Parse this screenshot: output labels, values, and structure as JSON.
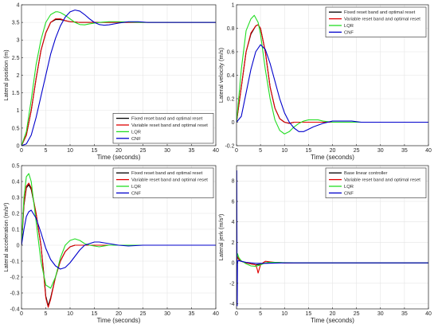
{
  "figure": {
    "background": "#ffffff"
  },
  "chart_data": [
    {
      "type": "line",
      "xlabel": "Time (seconds)",
      "ylabel": "Lateral position (m)",
      "xlim": [
        0,
        40
      ],
      "ylim": [
        0,
        4
      ],
      "xticks": [
        0,
        5,
        10,
        15,
        20,
        25,
        30,
        35,
        40
      ],
      "yticks": [
        0,
        0.5,
        1,
        1.5,
        2,
        2.5,
        3,
        3.5,
        4
      ],
      "ytick_labels": [
        "0",
        "0.5",
        "1",
        "1.5",
        "2",
        "2.5",
        "3",
        "3.5",
        "4"
      ],
      "grid": true,
      "legend_position": "bottom-right",
      "series": [
        {
          "name": "Fixed reset band and optimal reset",
          "color": "#000000",
          "x": [
            0,
            1,
            2,
            3,
            4,
            5,
            6,
            7,
            8,
            9,
            10,
            12,
            14,
            20,
            30,
            40
          ],
          "y": [
            0,
            0.3,
            1.0,
            1.9,
            2.7,
            3.2,
            3.5,
            3.58,
            3.58,
            3.55,
            3.52,
            3.5,
            3.5,
            3.5,
            3.5,
            3.5
          ]
        },
        {
          "name": "Variable reset band and optimal reset",
          "color": "#e00000",
          "x": [
            0,
            1,
            2,
            3,
            4,
            5,
            6,
            7,
            8,
            9,
            10,
            12,
            14,
            20,
            30,
            40
          ],
          "y": [
            0,
            0.3,
            1.0,
            1.9,
            2.7,
            3.2,
            3.5,
            3.6,
            3.6,
            3.55,
            3.52,
            3.5,
            3.5,
            3.5,
            3.5,
            3.5
          ]
        },
        {
          "name": "LQR",
          "color": "#22dd22",
          "x": [
            0,
            1,
            2,
            3,
            4,
            5,
            6,
            7,
            7.5,
            8,
            9,
            10,
            11,
            12,
            13,
            14,
            16,
            18,
            20,
            25,
            30,
            40
          ],
          "y": [
            0,
            0.4,
            1.3,
            2.3,
            3.0,
            3.5,
            3.72,
            3.8,
            3.8,
            3.78,
            3.7,
            3.6,
            3.5,
            3.44,
            3.43,
            3.46,
            3.5,
            3.52,
            3.52,
            3.5,
            3.5,
            3.5
          ]
        },
        {
          "name": "CNF",
          "color": "#0000cc",
          "x": [
            0,
            1,
            2,
            3,
            4,
            5,
            6,
            7,
            8,
            9,
            10,
            11,
            12,
            13,
            14,
            15,
            16,
            17,
            18,
            20,
            22,
            24,
            26,
            30,
            40
          ],
          "y": [
            0,
            0.05,
            0.3,
            0.8,
            1.4,
            2.0,
            2.6,
            3.05,
            3.4,
            3.65,
            3.8,
            3.85,
            3.82,
            3.72,
            3.6,
            3.5,
            3.44,
            3.42,
            3.43,
            3.48,
            3.52,
            3.52,
            3.5,
            3.5,
            3.5
          ]
        }
      ]
    },
    {
      "type": "line",
      "xlabel": "Time (seconds)",
      "ylabel": "Lateral velocity (m/s)",
      "xlim": [
        0,
        40
      ],
      "ylim": [
        -0.2,
        1
      ],
      "xticks": [
        0,
        5,
        10,
        15,
        20,
        25,
        30,
        35,
        40
      ],
      "yticks": [
        -0.2,
        0,
        0.2,
        0.4,
        0.6,
        0.8,
        1
      ],
      "ytick_labels": [
        "-0.2",
        "0",
        "0.2",
        "0.4",
        "0.6",
        "0.8",
        "1"
      ],
      "grid": true,
      "legend_position": "top-right",
      "series": [
        {
          "name": "Fixed reset band and optimal reset",
          "color": "#000000",
          "x": [
            0,
            1,
            2,
            3,
            4,
            4.5,
            5,
            6,
            7,
            8,
            9,
            10,
            11,
            12,
            14,
            16,
            20,
            30,
            40
          ],
          "y": [
            0,
            0.3,
            0.6,
            0.75,
            0.82,
            0.83,
            0.8,
            0.6,
            0.3,
            0.12,
            0.03,
            0.0,
            -0.01,
            0.0,
            0.0,
            0.0,
            0.0,
            0.0,
            0.0
          ]
        },
        {
          "name": "Variable reset band and optimal reset",
          "color": "#e00000",
          "x": [
            0,
            1,
            2,
            3,
            4,
            4.5,
            5,
            6,
            7,
            8,
            9,
            10,
            11,
            12,
            14,
            16,
            20,
            30,
            40
          ],
          "y": [
            0,
            0.3,
            0.6,
            0.76,
            0.82,
            0.83,
            0.8,
            0.6,
            0.3,
            0.12,
            0.03,
            0.0,
            -0.01,
            0.0,
            0.0,
            0.0,
            0.0,
            0.0,
            0.0
          ]
        },
        {
          "name": "LQR",
          "color": "#22dd22",
          "x": [
            0,
            1,
            2,
            3,
            3.7,
            4.5,
            5,
            6,
            7,
            8,
            9,
            10,
            11,
            12,
            13,
            14,
            15,
            16,
            17,
            18,
            20,
            25,
            30,
            40
          ],
          "y": [
            0,
            0.45,
            0.78,
            0.88,
            0.91,
            0.85,
            0.75,
            0.45,
            0.2,
            0.02,
            -0.07,
            -0.1,
            -0.08,
            -0.04,
            -0.01,
            0.01,
            0.02,
            0.02,
            0.02,
            0.01,
            0.0,
            0.0,
            0.0,
            0.0
          ]
        },
        {
          "name": "CNF",
          "color": "#0000cc",
          "x": [
            0,
            1,
            2,
            3,
            4,
            5,
            6,
            7,
            8,
            9,
            10,
            11,
            12,
            13,
            14,
            15,
            16,
            18,
            20,
            22,
            24,
            26,
            30,
            40
          ],
          "y": [
            0,
            0.05,
            0.25,
            0.45,
            0.6,
            0.66,
            0.62,
            0.5,
            0.35,
            0.2,
            0.08,
            0.0,
            -0.05,
            -0.08,
            -0.08,
            -0.06,
            -0.04,
            -0.01,
            0.01,
            0.01,
            0.01,
            0.0,
            0.0,
            0.0
          ]
        }
      ]
    },
    {
      "type": "line",
      "xlabel": "Time (seconds)",
      "ylabel": "Lateral acceleration (m/s²)",
      "xlim": [
        0,
        40
      ],
      "ylim": [
        -0.4,
        0.5
      ],
      "xticks": [
        0,
        5,
        10,
        15,
        20,
        25,
        30,
        35,
        40
      ],
      "yticks": [
        -0.4,
        -0.3,
        -0.2,
        -0.1,
        0,
        0.1,
        0.2,
        0.3,
        0.4,
        0.5
      ],
      "ytick_labels": [
        "-0.4",
        "-0.3",
        "-0.2",
        "-0.1",
        "0",
        "0.1",
        "0.2",
        "0.3",
        "0.4",
        "0.5"
      ],
      "grid": true,
      "legend_position": "top-right",
      "series": [
        {
          "name": "Fixed reset band and optimal reset",
          "color": "#000000",
          "x": [
            0,
            0.5,
            1,
            1.5,
            2,
            3,
            4,
            4.5,
            5,
            5.5,
            6,
            7,
            8,
            9,
            10,
            11,
            12,
            14,
            20,
            30,
            40
          ],
          "y": [
            0,
            0.25,
            0.36,
            0.38,
            0.35,
            0.2,
            0.0,
            -0.15,
            -0.32,
            -0.38,
            -0.33,
            -0.2,
            -0.1,
            -0.04,
            -0.01,
            0.0,
            0.0,
            0.0,
            0.0,
            0.0,
            0.0
          ]
        },
        {
          "name": "Variable reset band and optimal reset",
          "color": "#e00000",
          "x": [
            0,
            0.5,
            1,
            1.5,
            2,
            3,
            4,
            4.5,
            5,
            5.5,
            6,
            7,
            8,
            9,
            10,
            11,
            12,
            14,
            20,
            30,
            40
          ],
          "y": [
            0,
            0.26,
            0.37,
            0.39,
            0.36,
            0.2,
            0.0,
            -0.16,
            -0.33,
            -0.39,
            -0.34,
            -0.2,
            -0.1,
            -0.04,
            -0.01,
            0.0,
            0.0,
            0.0,
            0.0,
            0.0,
            0.0
          ]
        },
        {
          "name": "LQR",
          "color": "#22dd22",
          "x": [
            0,
            0.5,
            1,
            1.5,
            2,
            3,
            4,
            5,
            6,
            7,
            8,
            9,
            10,
            11,
            12,
            13,
            14,
            16,
            18,
            20,
            25,
            30,
            40
          ],
          "y": [
            0,
            0.3,
            0.43,
            0.45,
            0.4,
            0.15,
            -0.1,
            -0.25,
            -0.27,
            -0.2,
            -0.08,
            0.0,
            0.03,
            0.04,
            0.03,
            0.01,
            0.0,
            -0.01,
            0.0,
            0.0,
            0.0,
            0.0,
            0.0
          ]
        },
        {
          "name": "CNF",
          "color": "#0000cc",
          "x": [
            0,
            0.5,
            1,
            1.5,
            2,
            3,
            4,
            5,
            6,
            7,
            8,
            9,
            10,
            11,
            12,
            13,
            14,
            15,
            16,
            17,
            18,
            20,
            22,
            25,
            30,
            40
          ],
          "y": [
            0,
            0.1,
            0.18,
            0.21,
            0.22,
            0.17,
            0.08,
            -0.02,
            -0.09,
            -0.13,
            -0.15,
            -0.14,
            -0.11,
            -0.07,
            -0.03,
            0.0,
            0.01,
            0.02,
            0.02,
            0.015,
            0.01,
            0.0,
            -0.005,
            0.0,
            0.0,
            0.0
          ]
        }
      ]
    },
    {
      "type": "line",
      "xlabel": "Time (seconds)",
      "ylabel": "Lateral jerk (m/s³)",
      "xlim": [
        0,
        40
      ],
      "ylim": [
        -4.5,
        9.5
      ],
      "xticks": [
        0,
        5,
        10,
        15,
        20,
        25,
        30,
        35,
        40
      ],
      "yticks": [
        -4,
        -2,
        0,
        2,
        4,
        6,
        8
      ],
      "ytick_labels": [
        "-4",
        "-2",
        "0",
        "2",
        "4",
        "6",
        "8"
      ],
      "grid": true,
      "legend_position": "top-right",
      "series": [
        {
          "name": "Base linear controller",
          "color": "#000000",
          "x": [
            0,
            0.2,
            0.5,
            1,
            2,
            3,
            4,
            5,
            6,
            7,
            8,
            10,
            14,
            20,
            30,
            40
          ],
          "y": [
            0,
            0.6,
            0.3,
            0.15,
            0.0,
            -0.1,
            -0.2,
            -0.15,
            0.0,
            0.05,
            0.05,
            0.0,
            0.0,
            0.0,
            0.0,
            0.0
          ]
        },
        {
          "name": "Variable reset band and optimal reset",
          "color": "#e00000",
          "x": [
            0,
            0.2,
            0.5,
            1,
            2,
            3,
            4,
            4.3,
            4.5,
            4.8,
            5,
            5.5,
            6,
            7,
            8,
            10,
            14,
            20,
            30,
            40
          ],
          "y": [
            0,
            0.6,
            0.35,
            0.15,
            0.0,
            -0.1,
            -0.2,
            -0.6,
            -1.0,
            -0.5,
            -0.2,
            0.0,
            0.15,
            0.1,
            0.05,
            0.0,
            0.0,
            0.0,
            0.0,
            0.0
          ]
        },
        {
          "name": "LQR",
          "color": "#22dd22",
          "x": [
            0,
            0.2,
            0.5,
            1,
            2,
            3,
            4,
            5,
            6,
            7,
            8,
            10,
            14,
            20,
            30,
            40
          ],
          "y": [
            0,
            0.9,
            0.5,
            0.2,
            -0.1,
            -0.3,
            -0.35,
            -0.2,
            0.0,
            0.05,
            0.05,
            0.02,
            0.0,
            0.0,
            0.0,
            0.0
          ]
        },
        {
          "name": "CNF",
          "color": "#0000cc",
          "x": [
            0,
            0.05,
            0.1,
            0.15,
            0.2,
            0.3,
            0.5,
            1,
            2,
            4,
            6,
            8,
            10,
            14,
            20,
            30,
            40
          ],
          "y": [
            0,
            9.0,
            0.5,
            -4.2,
            0.0,
            0.2,
            0.2,
            0.15,
            0.05,
            -0.05,
            -0.05,
            -0.02,
            0.0,
            0.0,
            0.0,
            0.0,
            0.0
          ]
        }
      ]
    }
  ]
}
